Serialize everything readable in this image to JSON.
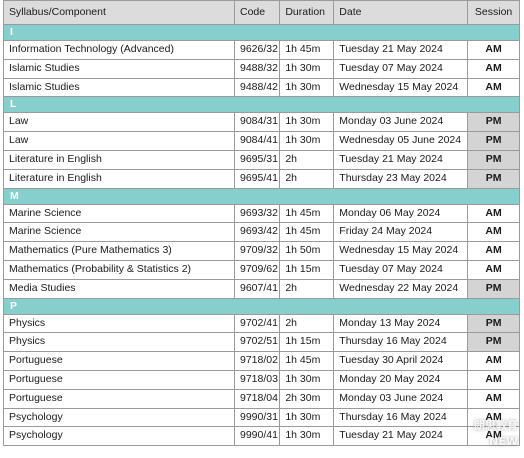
{
  "table": {
    "headers": {
      "syllabus": "Syllabus/Component",
      "code": "Code",
      "duration": "Duration",
      "date": "Date",
      "session": "Session"
    },
    "groups": [
      {
        "letter": "I",
        "rows": [
          {
            "name": "Information Technology (Advanced)",
            "code": "9626/32",
            "duration": "1h 45m",
            "date": "Tuesday 21 May 2024",
            "session": "AM"
          },
          {
            "name": "Islamic Studies",
            "code": "9488/32",
            "duration": "1h 30m",
            "date": "Tuesday 07 May 2024",
            "session": "AM"
          },
          {
            "name": "Islamic Studies",
            "code": "9488/42",
            "duration": "1h 30m",
            "date": "Wednesday 15 May 2024",
            "session": "AM"
          }
        ]
      },
      {
        "letter": "L",
        "rows": [
          {
            "name": "Law",
            "code": "9084/31",
            "duration": "1h 30m",
            "date": "Monday 03 June 2024",
            "session": "PM"
          },
          {
            "name": "Law",
            "code": "9084/41",
            "duration": "1h 30m",
            "date": "Wednesday 05 June 2024",
            "session": "PM"
          },
          {
            "name": "Literature in English",
            "code": "9695/31",
            "duration": "2h",
            "date": "Tuesday 21 May 2024",
            "session": "PM"
          },
          {
            "name": "Literature in English",
            "code": "9695/41",
            "duration": "2h",
            "date": "Thursday 23 May 2024",
            "session": "PM"
          }
        ]
      },
      {
        "letter": "M",
        "rows": [
          {
            "name": "Marine Science",
            "code": "9693/32",
            "duration": "1h 45m",
            "date": "Monday 06 May 2024",
            "session": "AM"
          },
          {
            "name": "Marine Science",
            "code": "9693/42",
            "duration": "1h 45m",
            "date": "Friday 24 May 2024",
            "session": "AM"
          },
          {
            "name": "Mathematics (Pure Mathematics 3)",
            "code": "9709/32",
            "duration": "1h 50m",
            "date": "Wednesday 15 May 2024",
            "session": "AM"
          },
          {
            "name": "Mathematics (Probability & Statistics 2)",
            "code": "9709/62",
            "duration": "1h 15m",
            "date": "Tuesday 07 May 2024",
            "session": "AM"
          },
          {
            "name": "Media Studies",
            "code": "9607/41",
            "duration": "2h",
            "date": "Wednesday 22 May 2024",
            "session": "PM"
          }
        ]
      },
      {
        "letter": "P",
        "rows": [
          {
            "name": "Physics",
            "code": "9702/41",
            "duration": "2h",
            "date": "Monday 13 May 2024",
            "session": "PM"
          },
          {
            "name": "Physics",
            "code": "9702/51",
            "duration": "1h 15m",
            "date": "Thursday 16 May 2024",
            "session": "PM"
          },
          {
            "name": "Portuguese",
            "code": "9718/02",
            "duration": "1h 45m",
            "date": "Tuesday 30 April 2024",
            "session": "AM"
          },
          {
            "name": "Portuguese",
            "code": "9718/03",
            "duration": "1h 30m",
            "date": "Monday 20 May 2024",
            "session": "AM"
          },
          {
            "name": "Portuguese",
            "code": "9718/04",
            "duration": "2h 30m",
            "date": "Monday 03 June 2024",
            "session": "AM"
          },
          {
            "name": "Psychology",
            "code": "9990/31",
            "duration": "1h 30m",
            "date": "Thursday 16 May 2024",
            "session": "AM"
          },
          {
            "name": "Psychology",
            "code": "9990/41",
            "duration": "1h 30m",
            "date": "Tuesday 21 May 2024",
            "session": "AM"
          }
        ]
      }
    ]
  },
  "watermark": {
    "line1": "朗思教育",
    "line2": "NEW"
  },
  "colors": {
    "header_bg": "#dcdcdc",
    "letter_bg": "#86cfcd",
    "pm_bg": "#d4d4d4",
    "border": "#9a9a9a"
  }
}
